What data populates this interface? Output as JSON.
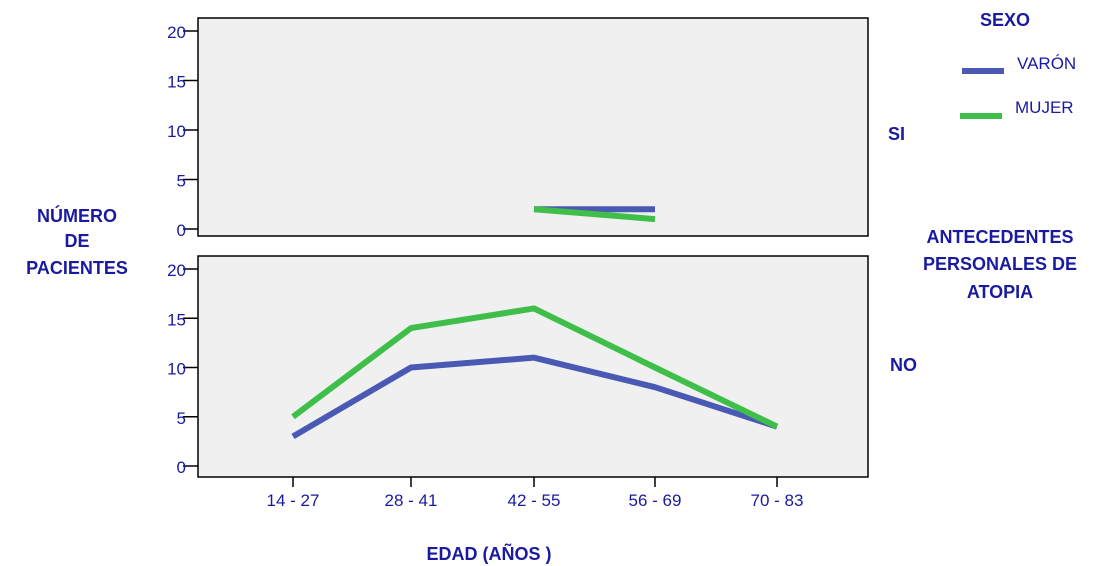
{
  "chart_data": {
    "type": "line",
    "categories": [
      "14 - 27",
      "28 - 41",
      "42 - 55",
      "56 - 69",
      "70 - 83"
    ],
    "ylabel": [
      "NÚMERO",
      "DE",
      "PACIENTES"
    ],
    "xlabel": "EDAD (AÑOS )",
    "yticks": [
      "0",
      "5",
      "10",
      "15",
      "20"
    ],
    "ylim": [
      0,
      20
    ],
    "grid": false,
    "legend": {
      "title": "SEXO",
      "position": "top-right",
      "items": [
        {
          "name": "VARÓN",
          "color": "#4a5ab4"
        },
        {
          "name": "MUJER",
          "color": "#3fbf4a"
        }
      ]
    },
    "facet_title": [
      "ANTECEDENTES",
      "PERSONALES DE",
      "ATOPIA"
    ],
    "panels": [
      {
        "label": "SI",
        "series": [
          {
            "name": "VARÓN",
            "values": [
              null,
              null,
              2,
              2,
              null
            ]
          },
          {
            "name": "MUJER",
            "values": [
              null,
              null,
              2,
              1,
              null
            ]
          }
        ]
      },
      {
        "label": "NO",
        "series": [
          {
            "name": "VARÓN",
            "values": [
              3,
              10,
              11,
              8,
              4
            ]
          },
          {
            "name": "MUJER",
            "values": [
              5,
              14,
              16,
              10,
              4
            ]
          }
        ]
      }
    ],
    "panel_background": "#f0f0f0",
    "text_color": "#1a1aa0"
  }
}
